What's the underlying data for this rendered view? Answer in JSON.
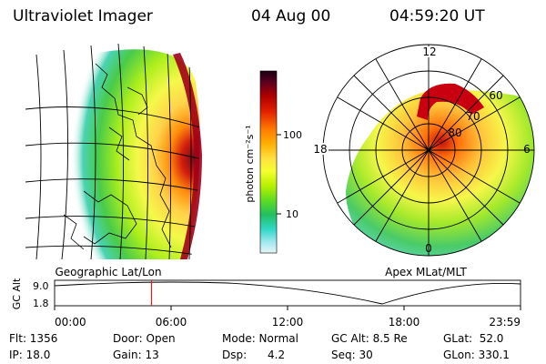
{
  "header": {
    "title": "Ultraviolet Imager",
    "date": "04 Aug 00",
    "time": "04:59:20 UT"
  },
  "left_panel": {
    "caption": "Geographic Lat/Lon"
  },
  "right_panel": {
    "caption": "Apex MLat/MLT",
    "mlt_labels": {
      "top": "12",
      "left": "18",
      "right": "6",
      "bottom": "0"
    },
    "lat_labels": [
      "60",
      "70",
      "80"
    ]
  },
  "colorbar": {
    "unit_label": "photon cm⁻²s⁻¹",
    "ticks": [
      "100",
      "10"
    ],
    "colors": [
      "#1a0010",
      "#5a0020",
      "#b00000",
      "#e02000",
      "#ff7a00",
      "#ffb000",
      "#ffe040",
      "#f6ff30",
      "#b8f000",
      "#60dd20",
      "#20c060",
      "#30d8c8",
      "#a0e8f0",
      "#e6f6f8"
    ]
  },
  "timeline": {
    "axis_label": "GC Alt",
    "y_ticks": [
      "9.0",
      "1.8"
    ],
    "x_ticks": [
      "00:00",
      "06:00",
      "12:00",
      "18:00",
      "23:59"
    ],
    "marker_hour": 4.99,
    "marker_color": "#e02020"
  },
  "footer": {
    "flt": "Flt: 1356",
    "ip": "IP: 18.0",
    "door": "Door: Open",
    "gain": "Gain: 13",
    "mode": "Mode: Normal",
    "dsp": "Dsp:      4.2",
    "gcalt": "GC Alt: 8.5 Re",
    "seq": "Seq: 30",
    "glat": "GLat:  52.0",
    "glon": "GLon: 330.1"
  }
}
